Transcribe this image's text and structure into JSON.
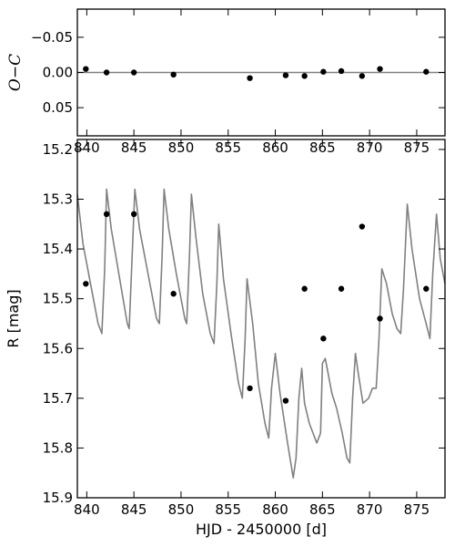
{
  "chart_data": [
    {
      "type": "scatter",
      "panel": "residuals",
      "ylabel": "O−C",
      "xlim": [
        839,
        878
      ],
      "ylim": [
        0.09,
        -0.09
      ],
      "inverted_y": true,
      "xticks": [
        840,
        845,
        850,
        855,
        860,
        865,
        870,
        875
      ],
      "xtick_labels": [
        "840",
        "845",
        "850",
        "855",
        "860",
        "865",
        "870",
        "875"
      ],
      "yticks": [
        -0.05,
        0.0,
        0.05
      ],
      "ytick_labels": [
        "−0.05",
        "0.00",
        "0.05"
      ],
      "zero_line": 0.0,
      "line_color": "#808080",
      "marker_color": "#000000",
      "points": [
        {
          "x": 839.9,
          "y": -0.005
        },
        {
          "x": 842.1,
          "y": 0.0
        },
        {
          "x": 845.0,
          "y": 0.0
        },
        {
          "x": 849.2,
          "y": 0.003
        },
        {
          "x": 857.3,
          "y": 0.008
        },
        {
          "x": 861.1,
          "y": 0.004
        },
        {
          "x": 863.1,
          "y": 0.005
        },
        {
          "x": 865.1,
          "y": -0.001
        },
        {
          "x": 867.0,
          "y": -0.002
        },
        {
          "x": 869.2,
          "y": 0.005
        },
        {
          "x": 871.1,
          "y": -0.005
        },
        {
          "x": 876.0,
          "y": -0.001
        }
      ]
    },
    {
      "type": "line",
      "panel": "light-curve",
      "xlabel": "HJD - 2450000 [d]",
      "ylabel": "R [mag]",
      "xlim": [
        839,
        878
      ],
      "ylim": [
        15.9,
        15.18
      ],
      "inverted_y": true,
      "xticks": [
        840,
        845,
        850,
        855,
        860,
        865,
        870,
        875
      ],
      "xtick_labels": [
        "840",
        "845",
        "850",
        "855",
        "860",
        "865",
        "870",
        "875"
      ],
      "yticks": [
        15.2,
        15.3,
        15.4,
        15.5,
        15.6,
        15.7,
        15.8,
        15.9
      ],
      "ytick_labels": [
        "15.2",
        "15.3",
        "15.4",
        "15.5",
        "15.6",
        "15.7",
        "15.8",
        "15.9"
      ],
      "line_color": "#808080",
      "marker_color": "#000000",
      "model_curve": {
        "x": [
          839.0,
          839.6,
          840.4,
          841.2,
          841.6,
          841.9,
          842.1,
          842.6,
          843.4,
          844.3,
          844.5,
          844.8,
          845.1,
          845.6,
          846.5,
          847.4,
          847.7,
          848.0,
          848.2,
          848.7,
          849.5,
          850.4,
          850.6,
          850.9,
          851.1,
          851.6,
          852.3,
          853.1,
          853.5,
          853.8,
          854.0,
          854.5,
          855.3,
          856.1,
          856.5,
          856.8,
          857.0,
          857.6,
          858.2,
          858.9,
          859.3,
          859.6,
          860.0,
          860.5,
          861.3,
          861.9,
          862.2,
          862.5,
          862.8,
          863.1,
          863.6,
          864.4,
          864.8,
          865.0,
          865.3,
          865.6,
          866.0,
          866.5,
          867.1,
          867.6,
          867.9,
          868.2,
          868.5,
          868.8,
          869.3,
          869.9,
          870.3,
          870.7,
          871.0,
          871.3,
          871.8,
          872.4,
          872.9,
          873.3,
          873.6,
          874.0,
          874.5,
          875.3,
          876.0,
          876.4,
          876.7,
          877.1,
          877.5,
          878.0
        ],
        "y": [
          15.29,
          15.39,
          15.47,
          15.55,
          15.57,
          15.44,
          15.28,
          15.36,
          15.45,
          15.55,
          15.56,
          15.42,
          15.28,
          15.36,
          15.45,
          15.54,
          15.55,
          15.41,
          15.28,
          15.36,
          15.45,
          15.54,
          15.55,
          15.41,
          15.29,
          15.38,
          15.49,
          15.57,
          15.59,
          15.47,
          15.35,
          15.46,
          15.57,
          15.67,
          15.7,
          15.58,
          15.46,
          15.55,
          15.67,
          15.75,
          15.78,
          15.68,
          15.61,
          15.69,
          15.79,
          15.86,
          15.82,
          15.7,
          15.64,
          15.71,
          15.75,
          15.79,
          15.77,
          15.63,
          15.62,
          15.65,
          15.69,
          15.72,
          15.77,
          15.82,
          15.83,
          15.7,
          15.61,
          15.65,
          15.71,
          15.7,
          15.68,
          15.68,
          15.58,
          15.44,
          15.47,
          15.53,
          15.56,
          15.57,
          15.48,
          15.31,
          15.4,
          15.5,
          15.55,
          15.58,
          15.45,
          15.33,
          15.42,
          15.47
        ]
      },
      "observations": [
        {
          "x": 839.9,
          "y": 15.47
        },
        {
          "x": 842.1,
          "y": 15.33
        },
        {
          "x": 845.0,
          "y": 15.33
        },
        {
          "x": 849.2,
          "y": 15.49
        },
        {
          "x": 857.3,
          "y": 15.68
        },
        {
          "x": 861.1,
          "y": 15.705
        },
        {
          "x": 863.1,
          "y": 15.48
        },
        {
          "x": 865.1,
          "y": 15.58
        },
        {
          "x": 867.0,
          "y": 15.48
        },
        {
          "x": 869.2,
          "y": 15.355
        },
        {
          "x": 871.1,
          "y": 15.54
        },
        {
          "x": 876.0,
          "y": 15.48
        }
      ]
    }
  ]
}
